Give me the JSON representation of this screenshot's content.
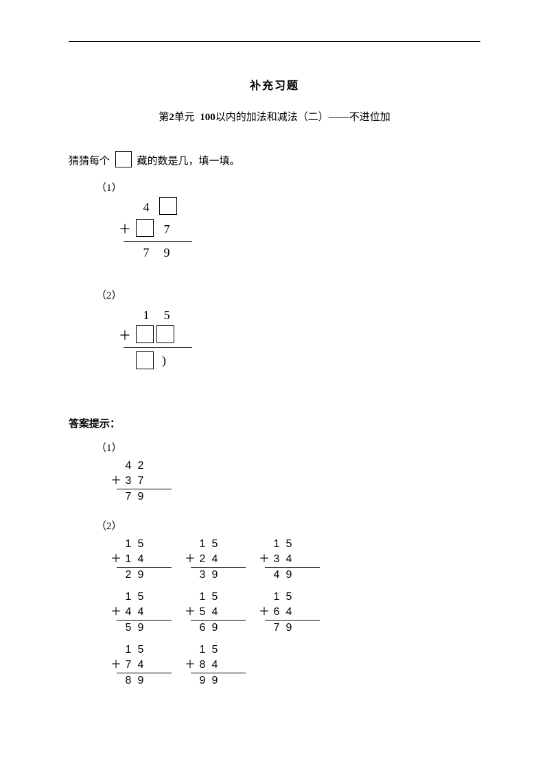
{
  "title_main": "补充习题",
  "title_unit_prefix": "第",
  "title_unit_num": "2",
  "title_unit_word": "单元",
  "title_range_num": "100",
  "title_range_text": "以内的加法和减法（二）——不进位加",
  "stem_prefix": "猜猜每个",
  "stem_suffix": "藏的数是几，填一填。",
  "label_p1": "（1）",
  "label_p2": "（2）",
  "answer_heading": "答案提示：",
  "p1": {
    "top_tens": "4",
    "add_ones": "7",
    "res_tens": "7",
    "res_ones": "9",
    "plus": "＋"
  },
  "p2": {
    "top_tens": "1",
    "top_ones": "5",
    "plus": "＋",
    "res_partial": ")"
  },
  "ans1": {
    "a_t": "4",
    "a_o": "2",
    "b_t": "3",
    "b_o": "7",
    "r_t": "7",
    "r_o": "9",
    "plus": "＋"
  },
  "ans2": [
    {
      "a_t": "1",
      "a_o": "5",
      "b_t": "1",
      "b_o": "4",
      "r_t": "2",
      "r_o": "9"
    },
    {
      "a_t": "1",
      "a_o": "5",
      "b_t": "2",
      "b_o": "4",
      "r_t": "3",
      "r_o": "9"
    },
    {
      "a_t": "1",
      "a_o": "5",
      "b_t": "3",
      "b_o": "4",
      "r_t": "4",
      "r_o": "9"
    },
    {
      "a_t": "1",
      "a_o": "5",
      "b_t": "4",
      "b_o": "4",
      "r_t": "5",
      "r_o": "9"
    },
    {
      "a_t": "1",
      "a_o": "5",
      "b_t": "5",
      "b_o": "4",
      "r_t": "6",
      "r_o": "9"
    },
    {
      "a_t": "1",
      "a_o": "5",
      "b_t": "6",
      "b_o": "4",
      "r_t": "7",
      "r_o": "9"
    },
    {
      "a_t": "1",
      "a_o": "5",
      "b_t": "7",
      "b_o": "4",
      "r_t": "8",
      "r_o": "9"
    },
    {
      "a_t": "1",
      "a_o": "5",
      "b_t": "8",
      "b_o": "4",
      "r_t": "9",
      "r_o": "9"
    }
  ],
  "plus_char": "＋"
}
